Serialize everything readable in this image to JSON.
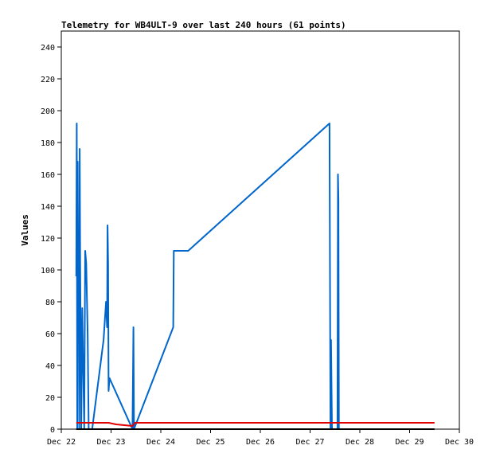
{
  "chart_data": {
    "type": "line",
    "title": "Telemetry for WB4ULT-9 over last 240 hours (61 points)",
    "xlabel": "",
    "ylabel": "Values",
    "xlim": [
      22,
      30
    ],
    "ylim": [
      0,
      250
    ],
    "x_ticks": [
      {
        "value": 22,
        "label": "Dec 22"
      },
      {
        "value": 23,
        "label": "Dec 23"
      },
      {
        "value": 24,
        "label": "Dec 24"
      },
      {
        "value": 25,
        "label": "Dec 25"
      },
      {
        "value": 26,
        "label": "Dec 26"
      },
      {
        "value": 27,
        "label": "Dec 27"
      },
      {
        "value": 28,
        "label": "Dec 28"
      },
      {
        "value": 29,
        "label": "Dec 29"
      },
      {
        "value": 30,
        "label": "Dec 30"
      }
    ],
    "y_ticks": [
      0,
      20,
      40,
      60,
      80,
      100,
      120,
      140,
      160,
      180,
      200,
      220,
      240
    ],
    "grid": false,
    "series": [
      {
        "color": "#0066cc",
        "points": [
          [
            22.3,
            96
          ],
          [
            22.31,
            192
          ],
          [
            22.32,
            0
          ],
          [
            22.33,
            168
          ],
          [
            22.34,
            74
          ],
          [
            22.35,
            120
          ],
          [
            22.36,
            0
          ],
          [
            22.37,
            176
          ],
          [
            22.38,
            106
          ],
          [
            22.4,
            0
          ],
          [
            22.42,
            76
          ],
          [
            22.46,
            0
          ],
          [
            22.48,
            112
          ],
          [
            22.5,
            104
          ],
          [
            22.53,
            60
          ],
          [
            22.55,
            0
          ],
          [
            22.62,
            0
          ],
          [
            22.85,
            56
          ],
          [
            22.9,
            80
          ],
          [
            22.92,
            64
          ],
          [
            22.93,
            128
          ],
          [
            22.94,
            104
          ],
          [
            22.95,
            24
          ],
          [
            22.97,
            32
          ],
          [
            23.43,
            0
          ],
          [
            23.45,
            64
          ],
          [
            23.46,
            0
          ],
          [
            24.25,
            64
          ],
          [
            24.26,
            112
          ],
          [
            24.55,
            112
          ],
          [
            27.39,
            192
          ],
          [
            27.41,
            0
          ],
          [
            27.42,
            56
          ],
          [
            27.44,
            0
          ],
          [
            27.55,
            0
          ],
          [
            27.56,
            160
          ],
          [
            27.57,
            144
          ],
          [
            27.58,
            0
          ]
        ]
      },
      {
        "color": "#e00000",
        "points": [
          [
            22.3,
            4
          ],
          [
            22.95,
            4
          ],
          [
            23.1,
            3
          ],
          [
            23.43,
            2
          ],
          [
            23.48,
            4
          ],
          [
            29.5,
            4
          ]
        ]
      },
      {
        "color": "#000000",
        "points": [
          [
            22.3,
            0
          ],
          [
            29.5,
            0
          ]
        ]
      }
    ]
  }
}
